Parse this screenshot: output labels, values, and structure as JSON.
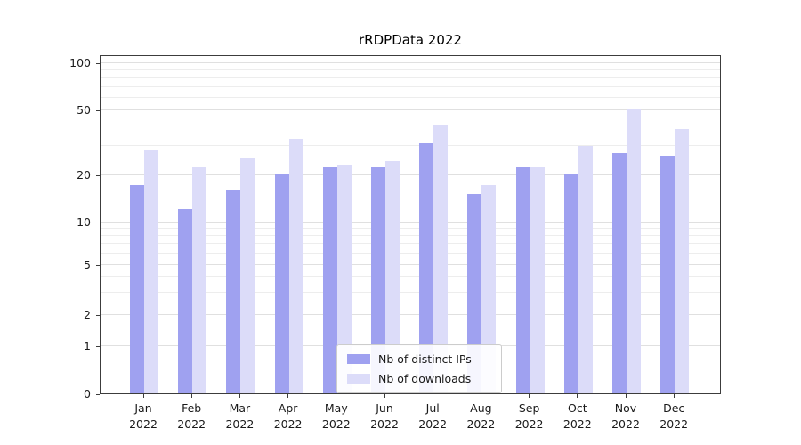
{
  "chart_data": {
    "type": "bar",
    "title": "rRDPData 2022",
    "xlabel": "",
    "ylabel": "",
    "scale": "symlog",
    "grid": true,
    "legend_position": "lower center",
    "yticks": [
      0,
      1,
      2,
      5,
      10,
      20,
      50,
      100
    ],
    "ylim": [
      0,
      100
    ],
    "categories": [
      "Jan 2022",
      "Feb 2022",
      "Mar 2022",
      "Apr 2022",
      "May 2022",
      "Jun 2022",
      "Jul 2022",
      "Aug 2022",
      "Sep 2022",
      "Oct 2022",
      "Nov 2022",
      "Dec 2022"
    ],
    "series": [
      {
        "name": "Nb of distinct IPs",
        "color": "#9fa1f0",
        "values": [
          17,
          12,
          16,
          20,
          22,
          22,
          31,
          15,
          22,
          20,
          27,
          26
        ]
      },
      {
        "name": "Nb of downloads",
        "color": "#dcdcf9",
        "values": [
          28,
          22,
          25,
          33,
          23,
          24,
          40,
          17,
          22,
          30,
          51,
          38
        ]
      }
    ]
  }
}
